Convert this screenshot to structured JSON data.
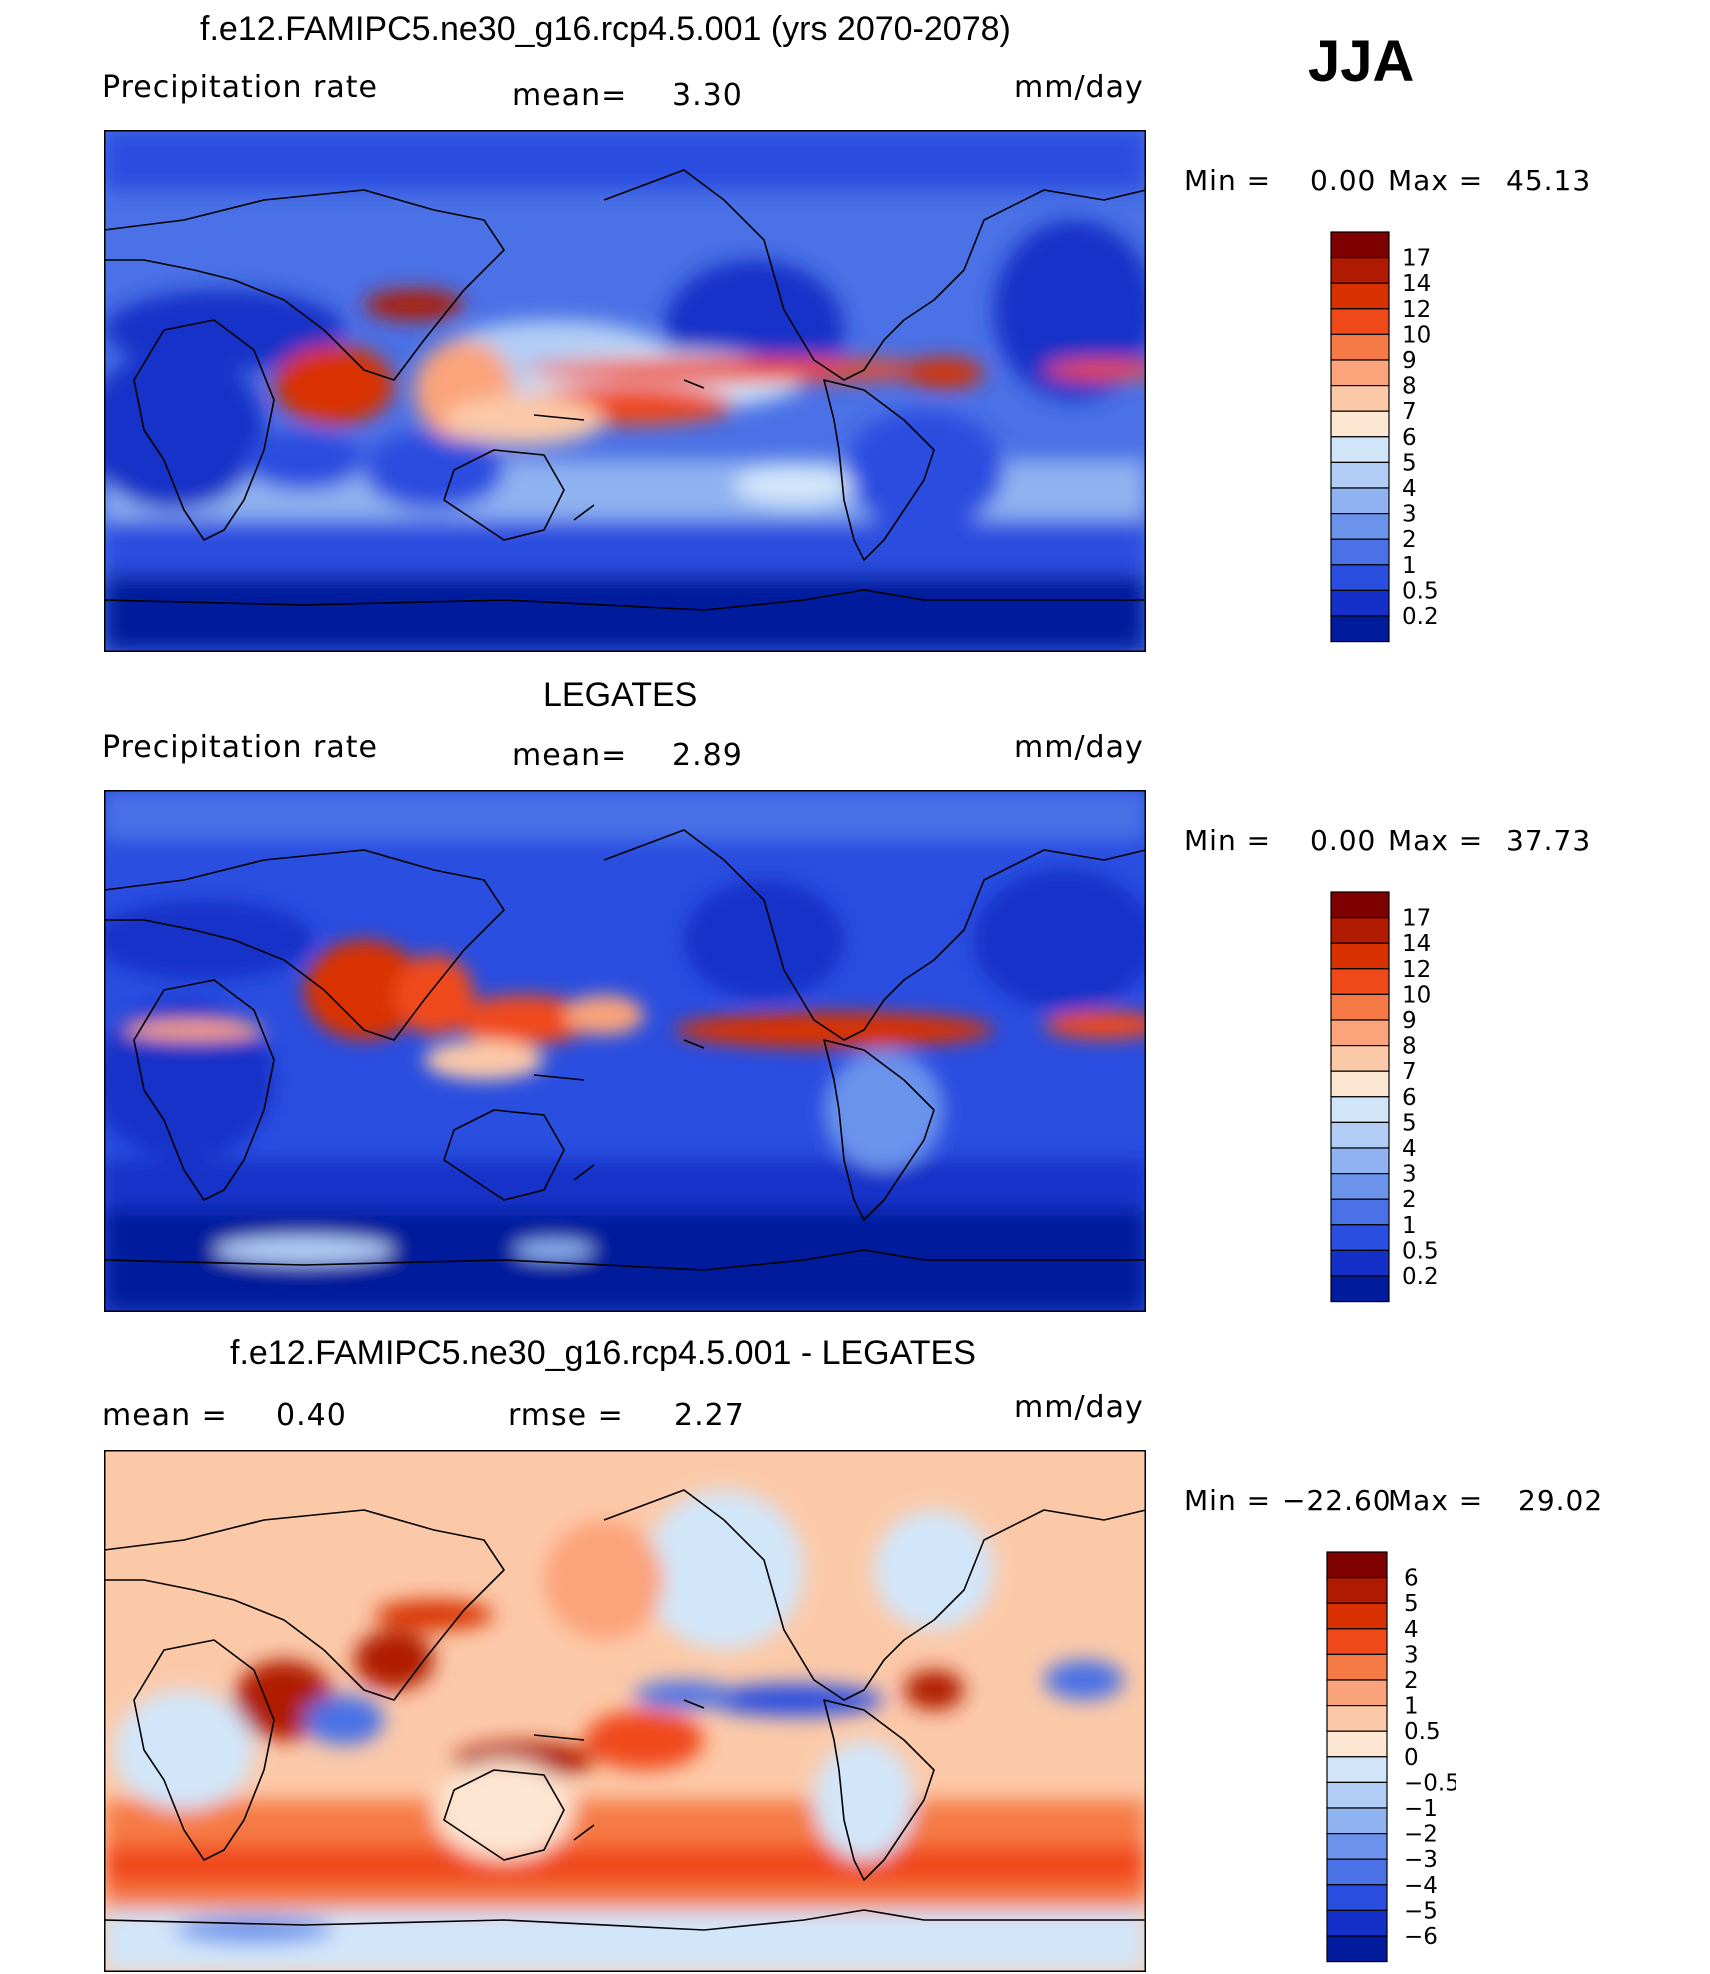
{
  "season": "JJA",
  "panels": [
    {
      "title": "f.e12.FAMIPC5.ne30_g16.rcp4.5.001 (yrs 2070-2078)",
      "left_label": "Precipitation  rate",
      "center_label": "mean=",
      "center_value": "3.30",
      "units": "mm/day",
      "min_label": "Min  =",
      "min_value": "0.00",
      "max_label": "Max  =",
      "max_value": "45.13",
      "colorbar": {
        "labels": [
          "17",
          "14",
          "12",
          "10",
          "9",
          "8",
          "7",
          "6",
          "5",
          "4",
          "3",
          "2",
          "1",
          "0.5",
          "0.2"
        ],
        "colors": [
          "#7f0000",
          "#b01a00",
          "#d93000",
          "#f04a1a",
          "#f57a45",
          "#fba37a",
          "#fcc9a8",
          "#fde6d2",
          "#d2e6fa",
          "#b2cdf5",
          "#8fb2f0",
          "#6b93ec",
          "#4a71e6",
          "#2a4ee0",
          "#1430c8",
          "#001c9c"
        ]
      }
    },
    {
      "title": "LEGATES",
      "left_label": "Precipitation  rate",
      "center_label": "mean=",
      "center_value": "2.89",
      "units": "mm/day",
      "min_label": "Min  =",
      "min_value": "0.00",
      "max_label": "Max  =",
      "max_value": "37.73",
      "colorbar": {
        "labels": [
          "17",
          "14",
          "12",
          "10",
          "9",
          "8",
          "7",
          "6",
          "5",
          "4",
          "3",
          "2",
          "1",
          "0.5",
          "0.2"
        ],
        "colors": [
          "#7f0000",
          "#b01a00",
          "#d93000",
          "#f04a1a",
          "#f57a45",
          "#fba37a",
          "#fcc9a8",
          "#fde6d2",
          "#d2e6fa",
          "#b2cdf5",
          "#8fb2f0",
          "#6b93ec",
          "#4a71e6",
          "#2a4ee0",
          "#1430c8",
          "#001c9c"
        ]
      }
    },
    {
      "title": "f.e12.FAMIPC5.ne30_g16.rcp4.5.001 - LEGATES",
      "left_label": "mean  =",
      "left_value": "0.40",
      "center_label": "rmse  =",
      "center_value": "2.27",
      "units": "mm/day",
      "min_label": "Min  =",
      "min_value": "−22.60",
      "max_label": "Max  =",
      "max_value": "29.02",
      "colorbar": {
        "labels": [
          "6",
          "5",
          "4",
          "3",
          "2",
          "1",
          "0.5",
          "0",
          "−0.5",
          "−1",
          "−2",
          "−3",
          "−4",
          "−5",
          "−6"
        ],
        "colors": [
          "#7f0000",
          "#b01a00",
          "#d93000",
          "#f04a1a",
          "#f57a45",
          "#fba37a",
          "#fcc9a8",
          "#fde6d2",
          "#d2e6fa",
          "#b2cdf5",
          "#8fb2f0",
          "#6b93ec",
          "#4a71e6",
          "#2a4ee0",
          "#1430c8",
          "#001c9c"
        ]
      }
    }
  ]
}
